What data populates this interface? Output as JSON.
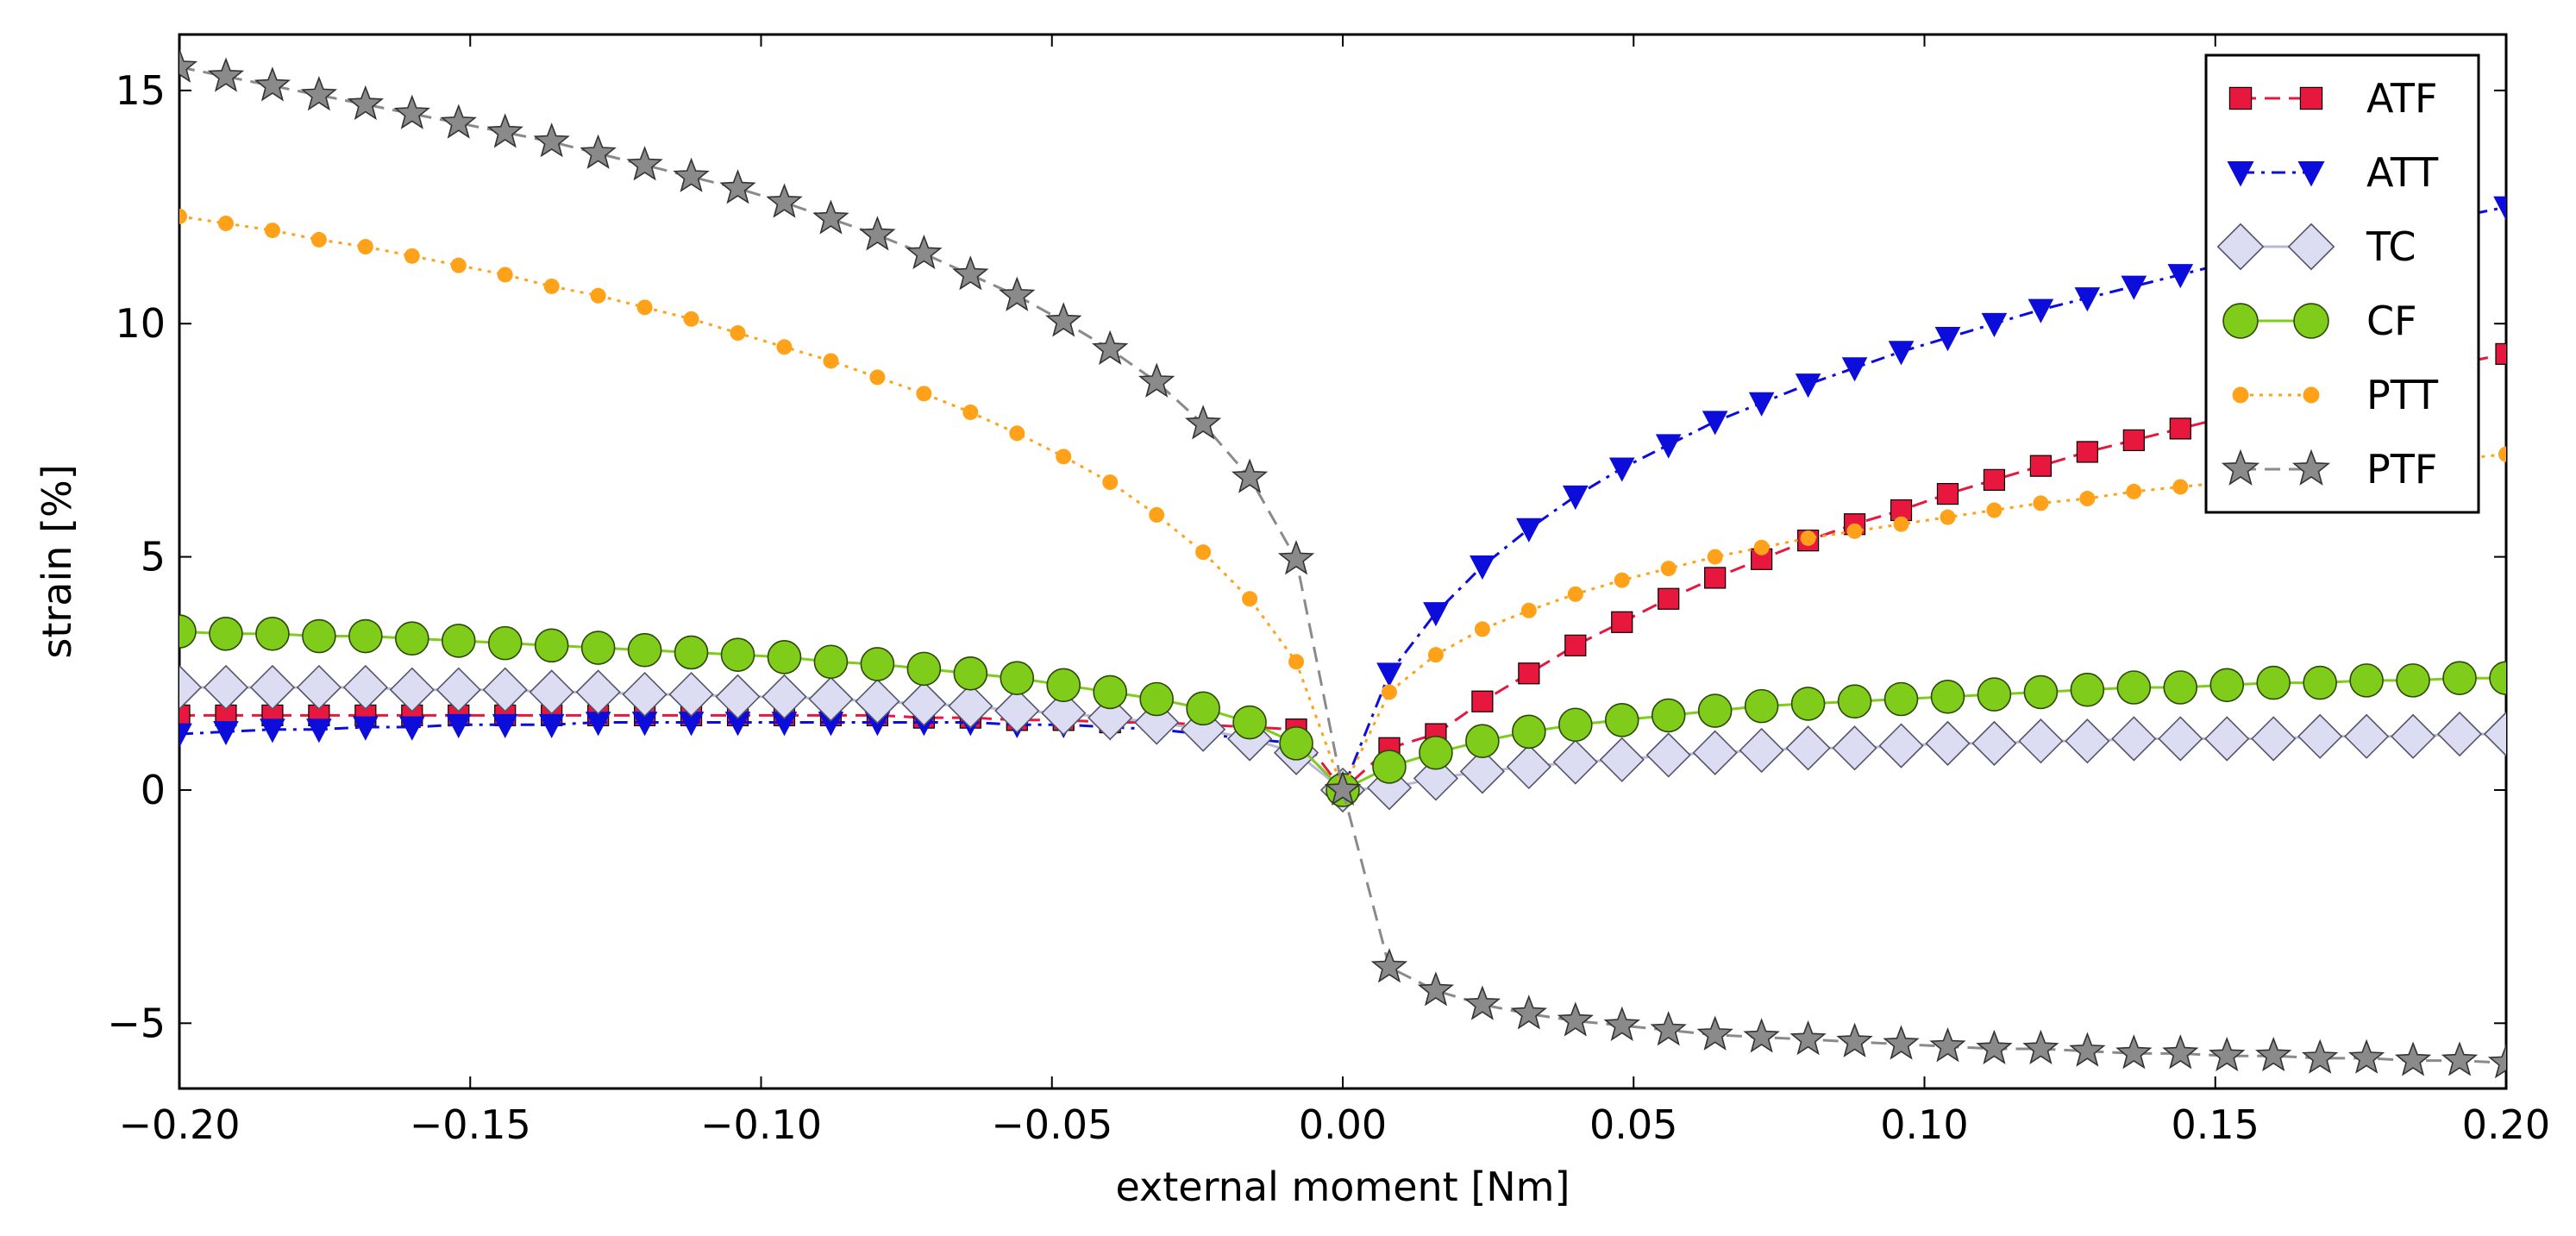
{
  "chart_data": {
    "type": "line",
    "title": "",
    "xlabel": "external moment [Nm]",
    "ylabel": "strain [%]",
    "xlim": [
      -0.2,
      0.2
    ],
    "ylim": [
      -6.4,
      16.2
    ],
    "xticks": [
      -0.2,
      -0.15,
      -0.1,
      -0.05,
      0.0,
      0.05,
      0.1,
      0.15,
      0.2
    ],
    "xtick_labels": [
      "−0.20",
      "−0.15",
      "−0.10",
      "−0.05",
      "0.00",
      "0.05",
      "0.10",
      "0.15",
      "0.20"
    ],
    "yticks": [
      -5,
      0,
      5,
      10,
      15
    ],
    "ytick_labels": [
      "−5",
      "0",
      "5",
      "10",
      "15"
    ],
    "grid": false,
    "legend_position": "top-right",
    "x": [
      -0.2,
      -0.192,
      -0.184,
      -0.176,
      -0.168,
      -0.16,
      -0.152,
      -0.144,
      -0.136,
      -0.128,
      -0.12,
      -0.112,
      -0.104,
      -0.096,
      -0.088,
      -0.08,
      -0.072,
      -0.064,
      -0.056,
      -0.048,
      -0.04,
      -0.032,
      -0.024,
      -0.016,
      -0.008,
      0.0,
      0.008,
      0.016,
      0.024,
      0.032,
      0.04,
      0.048,
      0.056,
      0.064,
      0.072,
      0.08,
      0.088,
      0.096,
      0.104,
      0.112,
      0.12,
      0.128,
      0.136,
      0.144,
      0.152,
      0.16,
      0.168,
      0.176,
      0.184,
      0.192,
      0.2
    ],
    "series": [
      {
        "name": "ATF",
        "color": "#e8173e",
        "marker": "square",
        "linestyle": "dashed",
        "values": [
          1.6,
          1.6,
          1.6,
          1.6,
          1.6,
          1.6,
          1.6,
          1.6,
          1.6,
          1.6,
          1.6,
          1.6,
          1.6,
          1.6,
          1.6,
          1.6,
          1.55,
          1.55,
          1.5,
          1.5,
          1.45,
          1.45,
          1.4,
          1.35,
          1.3,
          0.0,
          0.9,
          1.2,
          1.9,
          2.5,
          3.1,
          3.6,
          4.1,
          4.55,
          4.95,
          5.35,
          5.7,
          6.0,
          6.35,
          6.65,
          6.95,
          7.25,
          7.5,
          7.75,
          8.0,
          8.25,
          8.5,
          8.75,
          8.95,
          9.15,
          9.35
        ]
      },
      {
        "name": "ATT",
        "color": "#0d0ddb",
        "marker": "triangle-down",
        "linestyle": "dashdot",
        "values": [
          1.2,
          1.25,
          1.3,
          1.3,
          1.35,
          1.35,
          1.4,
          1.4,
          1.4,
          1.45,
          1.45,
          1.45,
          1.45,
          1.45,
          1.45,
          1.45,
          1.45,
          1.45,
          1.4,
          1.4,
          1.35,
          1.3,
          1.2,
          1.1,
          1.0,
          0.0,
          2.5,
          3.8,
          4.8,
          5.6,
          6.3,
          6.9,
          7.4,
          7.9,
          8.3,
          8.7,
          9.05,
          9.4,
          9.7,
          10.0,
          10.3,
          10.55,
          10.8,
          11.05,
          11.3,
          11.5,
          11.7,
          11.9,
          12.1,
          12.3,
          12.5
        ]
      },
      {
        "name": "TC",
        "color": "#dcdcf2",
        "marker": "diamond",
        "linestyle": "solid",
        "values": [
          2.2,
          2.2,
          2.2,
          2.2,
          2.2,
          2.15,
          2.15,
          2.15,
          2.1,
          2.1,
          2.05,
          2.05,
          2.0,
          2.0,
          1.95,
          1.9,
          1.85,
          1.8,
          1.7,
          1.65,
          1.55,
          1.45,
          1.3,
          1.1,
          0.8,
          0.0,
          0.05,
          0.25,
          0.4,
          0.5,
          0.6,
          0.65,
          0.75,
          0.8,
          0.85,
          0.9,
          0.9,
          0.95,
          1.0,
          1.0,
          1.05,
          1.05,
          1.1,
          1.1,
          1.1,
          1.1,
          1.15,
          1.15,
          1.15,
          1.2,
          1.2
        ]
      },
      {
        "name": "CF",
        "color": "#7fcc1a",
        "marker": "circle",
        "linestyle": "solid",
        "values": [
          3.4,
          3.35,
          3.35,
          3.3,
          3.3,
          3.25,
          3.2,
          3.15,
          3.1,
          3.05,
          3.0,
          2.95,
          2.9,
          2.85,
          2.75,
          2.7,
          2.6,
          2.5,
          2.4,
          2.25,
          2.1,
          1.95,
          1.75,
          1.45,
          1.0,
          0.0,
          0.5,
          0.8,
          1.05,
          1.25,
          1.4,
          1.5,
          1.6,
          1.7,
          1.8,
          1.85,
          1.9,
          1.95,
          2.0,
          2.05,
          2.1,
          2.15,
          2.2,
          2.2,
          2.25,
          2.3,
          2.3,
          2.35,
          2.35,
          2.4,
          2.4
        ]
      },
      {
        "name": "PTT",
        "color": "#ffa21a",
        "marker": "circle-small",
        "linestyle": "dotted",
        "values": [
          12.3,
          12.15,
          12.0,
          11.8,
          11.65,
          11.45,
          11.25,
          11.05,
          10.8,
          10.6,
          10.35,
          10.1,
          9.8,
          9.5,
          9.2,
          8.85,
          8.5,
          8.1,
          7.65,
          7.15,
          6.6,
          5.9,
          5.1,
          4.1,
          2.75,
          0.0,
          2.1,
          2.9,
          3.45,
          3.85,
          4.2,
          4.5,
          4.75,
          5.0,
          5.2,
          5.4,
          5.55,
          5.7,
          5.85,
          6.0,
          6.15,
          6.25,
          6.4,
          6.5,
          6.6,
          6.7,
          6.8,
          6.9,
          7.0,
          7.1,
          7.2
        ]
      },
      {
        "name": "PTF",
        "color": "#8a8a8a",
        "marker": "star",
        "linestyle": "dashed",
        "values": [
          15.5,
          15.3,
          15.1,
          14.9,
          14.7,
          14.5,
          14.3,
          14.1,
          13.9,
          13.65,
          13.4,
          13.15,
          12.9,
          12.6,
          12.25,
          11.9,
          11.5,
          11.05,
          10.6,
          10.05,
          9.45,
          8.75,
          7.85,
          6.7,
          4.95,
          0.0,
          -3.8,
          -4.3,
          -4.6,
          -4.8,
          -4.95,
          -5.05,
          -5.15,
          -5.25,
          -5.3,
          -5.35,
          -5.4,
          -5.45,
          -5.5,
          -5.55,
          -5.55,
          -5.6,
          -5.65,
          -5.65,
          -5.7,
          -5.7,
          -5.75,
          -5.75,
          -5.8,
          -5.8,
          -5.85
        ]
      }
    ]
  }
}
